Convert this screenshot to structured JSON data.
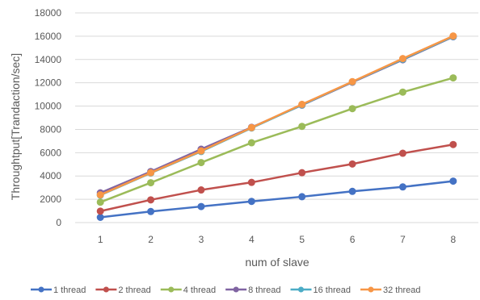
{
  "chart_data": {
    "type": "line",
    "title": "",
    "xlabel": "num of slave",
    "ylabel": "Throughtput[Trandaction/sec]",
    "x": [
      1,
      2,
      3,
      4,
      5,
      6,
      7,
      8
    ],
    "ylim": [
      0,
      18000
    ],
    "yticks": [
      0,
      2000,
      4000,
      6000,
      8000,
      10000,
      12000,
      14000,
      16000,
      18000
    ],
    "grid": true,
    "legend_position": "bottom",
    "series": [
      {
        "name": "1 thread",
        "color": "#4472c4",
        "values": [
          450,
          950,
          1380,
          1820,
          2220,
          2680,
          3060,
          3560
        ]
      },
      {
        "name": "2 thread",
        "color": "#c0504d",
        "values": [
          980,
          1950,
          2800,
          3450,
          4280,
          5030,
          5950,
          6700
        ]
      },
      {
        "name": "4 thread",
        "color": "#9bbb59",
        "values": [
          1750,
          3420,
          5150,
          6850,
          8260,
          9780,
          11200,
          12420
        ]
      },
      {
        "name": "8 thread",
        "color": "#8064a2",
        "values": [
          2550,
          4380,
          6300,
          8180,
          10080,
          12050,
          13980,
          15950
        ]
      },
      {
        "name": "16 thread",
        "color": "#4bacc6",
        "values": [
          2350,
          4250,
          6100,
          8120,
          10100,
          12080,
          14020,
          15980
        ]
      },
      {
        "name": "32 thread",
        "color": "#f79646",
        "values": [
          2380,
          4280,
          6150,
          8150,
          10150,
          12100,
          14080,
          16020
        ]
      }
    ]
  }
}
